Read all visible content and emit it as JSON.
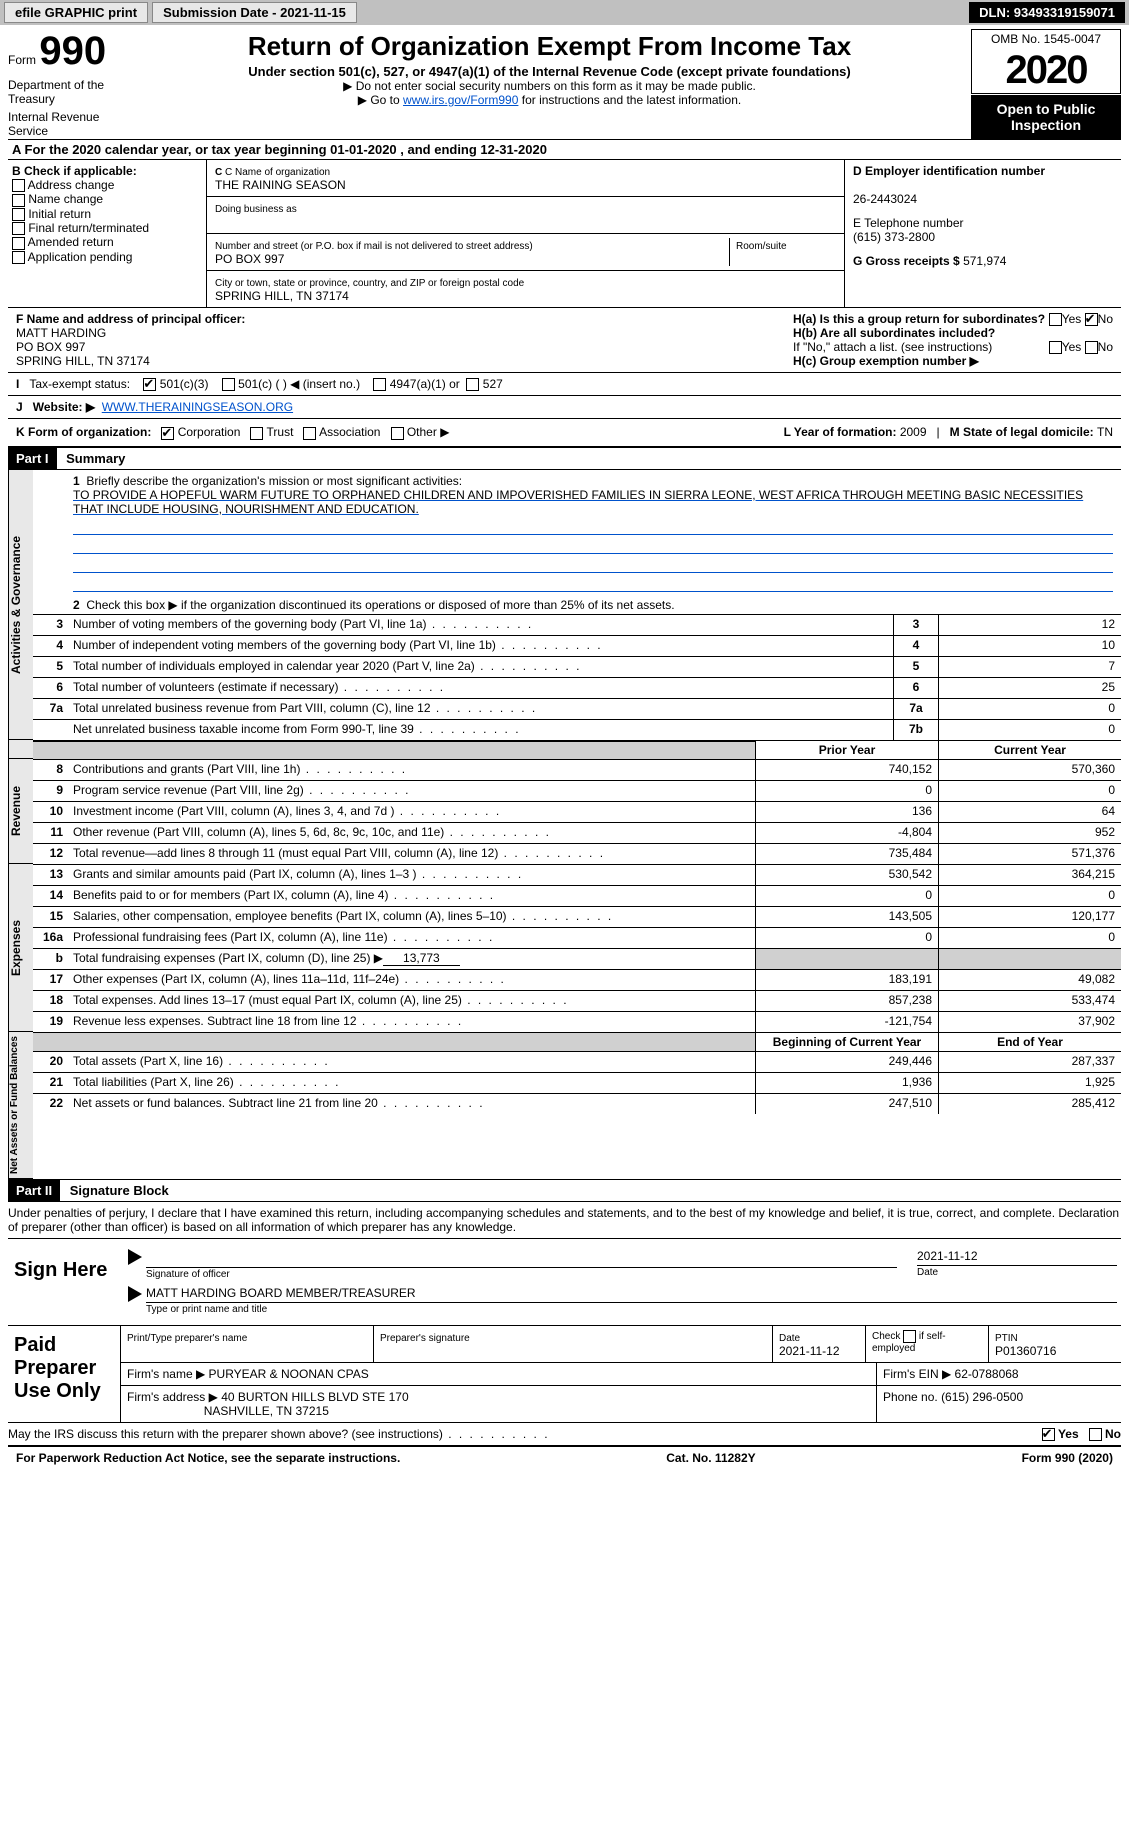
{
  "topbar": {
    "efile": "efile GRAPHIC print",
    "submission_label": "Submission Date - 2021-11-15",
    "dln": "DLN: 93493319159071"
  },
  "header": {
    "form_label": "Form",
    "form_number": "990",
    "title": "Return of Organization Exempt From Income Tax",
    "subtitle": "Under section 501(c), 527, or 4947(a)(1) of the Internal Revenue Code (except private foundations)",
    "note1": "▶ Do not enter social security numbers on this form as it may be made public.",
    "note2_prefix": "▶ Go to ",
    "note2_link": "www.irs.gov/Form990",
    "note2_suffix": " for instructions and the latest information.",
    "dept1": "Department of the Treasury",
    "dept2": "Internal Revenue Service",
    "omb": "OMB No. 1545-0047",
    "year": "2020",
    "open_public": "Open to Public Inspection"
  },
  "row_a": "For the 2020 calendar year, or tax year beginning 01-01-2020    , and ending 12-31-2020",
  "section_b": {
    "label": "B Check if applicable:",
    "options": [
      "Address change",
      "Name change",
      "Initial return",
      "Final return/terminated",
      "Amended return",
      "Application pending"
    ],
    "c_label": "C Name of organization",
    "c_name": "THE RAINING SEASON",
    "dba_label": "Doing business as",
    "addr_label": "Number and street (or P.O. box if mail is not delivered to street address)",
    "room_label": "Room/suite",
    "addr": "PO BOX 997",
    "city_label": "City or town, state or province, country, and ZIP or foreign postal code",
    "city": "SPRING HILL, TN  37174",
    "d_label": "D Employer identification number",
    "d_ein": "26-2443024",
    "e_label": "E Telephone number",
    "e_phone": "(615) 373-2800",
    "g_label": "G Gross receipts $ ",
    "g_val": "571,974"
  },
  "section_f": {
    "f_label": "F Name and address of principal officer:",
    "name": "MATT HARDING",
    "addr1": "PO BOX 997",
    "addr2": "SPRING HILL, TN  37174",
    "ha_label": "H(a)  Is this a group return for subordinates?",
    "ha_yes": "Yes",
    "ha_no": "No",
    "hb_label": "H(b)  Are all subordinates included?",
    "hb_note": "If \"No,\" attach a list. (see instructions)",
    "hc_label": "H(c)  Group exemption number ▶"
  },
  "row_i": {
    "label": "Tax-exempt status:",
    "opt1": "501(c)(3)",
    "opt2": "501(c) (  ) ◀ (insert no.)",
    "opt3": "4947(a)(1) or",
    "opt4": "527"
  },
  "row_j": {
    "label": "Website: ▶",
    "url": "WWW.THERAININGSEASON.ORG"
  },
  "row_k": {
    "label": "K Form of organization:",
    "opts": [
      "Corporation",
      "Trust",
      "Association",
      "Other ▶"
    ],
    "l_label": "L Year of formation: ",
    "l_val": "2009",
    "m_label": "M State of legal domicile: ",
    "m_val": "TN"
  },
  "parts": {
    "part1": "Part I",
    "part1_title": "Summary",
    "part2": "Part II",
    "part2_title": "Signature Block"
  },
  "mission": {
    "label": "Briefly describe the organization's mission or most significant activities:",
    "text": "TO PROVIDE A HOPEFUL WARM FUTURE TO ORPHANED CHILDREN AND IMPOVERISHED FAMILIES IN SIERRA LEONE, WEST AFRICA THROUGH MEETING BASIC NECESSITIES THAT INCLUDE HOUSING, NOURISHMENT AND EDUCATION."
  },
  "governance": {
    "line2": "Check this box ▶      if the organization discontinued its operations or disposed of more than 25% of its net assets.",
    "lines": [
      {
        "n": "3",
        "label": "Number of voting members of the governing body (Part VI, line 1a)",
        "k": "3",
        "v": "12"
      },
      {
        "n": "4",
        "label": "Number of independent voting members of the governing body (Part VI, line 1b)",
        "k": "4",
        "v": "10"
      },
      {
        "n": "5",
        "label": "Total number of individuals employed in calendar year 2020 (Part V, line 2a)",
        "k": "5",
        "v": "7"
      },
      {
        "n": "6",
        "label": "Total number of volunteers (estimate if necessary)",
        "k": "6",
        "v": "25"
      },
      {
        "n": "7a",
        "label": "Total unrelated business revenue from Part VIII, column (C), line 12",
        "k": "7a",
        "v": "0"
      },
      {
        "n": "",
        "label": "Net unrelated business taxable income from Form 990-T, line 39",
        "k": "7b",
        "v": "0"
      }
    ]
  },
  "col_headers": {
    "prior": "Prior Year",
    "current": "Current Year",
    "boy": "Beginning of Current Year",
    "eoy": "End of Year"
  },
  "revenue": [
    {
      "n": "8",
      "label": "Contributions and grants (Part VIII, line 1h)",
      "p": "740,152",
      "c": "570,360"
    },
    {
      "n": "9",
      "label": "Program service revenue (Part VIII, line 2g)",
      "p": "0",
      "c": "0"
    },
    {
      "n": "10",
      "label": "Investment income (Part VIII, column (A), lines 3, 4, and 7d )",
      "p": "136",
      "c": "64"
    },
    {
      "n": "11",
      "label": "Other revenue (Part VIII, column (A), lines 5, 6d, 8c, 9c, 10c, and 11e)",
      "p": "-4,804",
      "c": "952"
    },
    {
      "n": "12",
      "label": "Total revenue—add lines 8 through 11 (must equal Part VIII, column (A), line 12)",
      "p": "735,484",
      "c": "571,376"
    }
  ],
  "expenses_16b": {
    "n": "b",
    "label": "Total fundraising expenses (Part IX, column (D), line 25) ▶",
    "val": "13,773"
  },
  "expenses": [
    {
      "n": "13",
      "label": "Grants and similar amounts paid (Part IX, column (A), lines 1–3 )",
      "p": "530,542",
      "c": "364,215"
    },
    {
      "n": "14",
      "label": "Benefits paid to or for members (Part IX, column (A), line 4)",
      "p": "0",
      "c": "0"
    },
    {
      "n": "15",
      "label": "Salaries, other compensation, employee benefits (Part IX, column (A), lines 5–10)",
      "p": "143,505",
      "c": "120,177"
    },
    {
      "n": "16a",
      "label": "Professional fundraising fees (Part IX, column (A), line 11e)",
      "p": "0",
      "c": "0"
    },
    {
      "n": "17",
      "label": "Other expenses (Part IX, column (A), lines 11a–11d, 11f–24e)",
      "p": "183,191",
      "c": "49,082"
    },
    {
      "n": "18",
      "label": "Total expenses. Add lines 13–17 (must equal Part IX, column (A), line 25)",
      "p": "857,238",
      "c": "533,474"
    },
    {
      "n": "19",
      "label": "Revenue less expenses. Subtract line 18 from line 12",
      "p": "-121,754",
      "c": "37,902"
    }
  ],
  "netassets": [
    {
      "n": "20",
      "label": "Total assets (Part X, line 16)",
      "p": "249,446",
      "c": "287,337"
    },
    {
      "n": "21",
      "label": "Total liabilities (Part X, line 26)",
      "p": "1,936",
      "c": "1,925"
    },
    {
      "n": "22",
      "label": "Net assets or fund balances. Subtract line 21 from line 20",
      "p": "247,510",
      "c": "285,412"
    }
  ],
  "vtabs": {
    "gov": "Activities & Governance",
    "rev": "Revenue",
    "exp": "Expenses",
    "na": "Net Assets or Fund Balances"
  },
  "sig_disclaimer": "Under penalties of perjury, I declare that I have examined this return, including accompanying schedules and statements, and to the best of my knowledge and belief, it is true, correct, and complete. Declaration of preparer (other than officer) is based on all information of which preparer has any knowledge.",
  "sign": {
    "label": "Sign Here",
    "sig_of_officer": "Signature of officer",
    "date_label": "Date",
    "date": "2021-11-12",
    "name": "MATT HARDING BOARD MEMBER/TREASURER",
    "name_label": "Type or print name and title"
  },
  "preparer": {
    "label": "Paid Preparer Use Only",
    "h1": "Print/Type preparer's name",
    "h2": "Preparer's signature",
    "h3": "Date",
    "h3v": "2021-11-12",
    "h4": "Check       if self-employed",
    "h5": "PTIN",
    "h5v": "P01360716",
    "firm_name_label": "Firm's name    ▶",
    "firm_name": "PURYEAR & NOONAN CPAS",
    "firm_ein_label": "Firm's EIN ▶",
    "firm_ein": "62-0788068",
    "firm_addr_label": "Firm's address ▶",
    "firm_addr1": "40 BURTON HILLS BLVD STE 170",
    "firm_addr2": "NASHVILLE, TN  37215",
    "firm_phone_label": "Phone no.",
    "firm_phone": "(615) 296-0500"
  },
  "discuss": {
    "label": "May the IRS discuss this return with the preparer shown above? (see instructions)",
    "yes": "Yes",
    "no": "No"
  },
  "footer": {
    "pra": "For Paperwork Reduction Act Notice, see the separate instructions.",
    "cat": "Cat. No. 11282Y",
    "form": "Form 990 (2020)"
  }
}
